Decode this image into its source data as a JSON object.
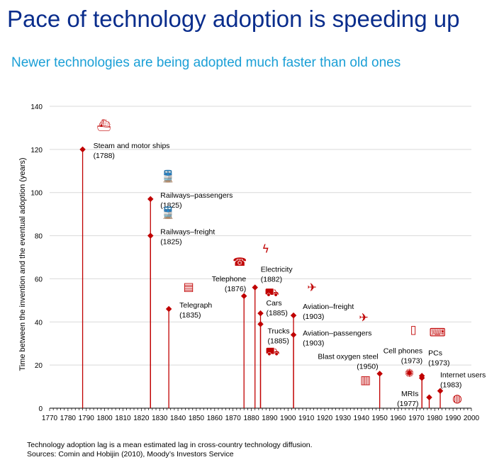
{
  "title": "Pace of technology adoption is speeding up",
  "subtitle": "Newer technologies are being adopted much faster than old ones",
  "footnote": "Technology adoption lag is a mean estimated lag in cross-country technology diffusion.",
  "sources": "Sources: Comin and Hobijin (2010), Moody’s Investors Service",
  "colors": {
    "accent": "#c00000",
    "grid": "#d9d9d9"
  },
  "chart_data": {
    "type": "scatter",
    "style": "lollipop",
    "ylabel": "Time between the invention and the eventual adoption (years)",
    "xlabel": "",
    "xlim": [
      1770,
      2000
    ],
    "ylim": [
      0,
      140
    ],
    "xticks": [
      1770,
      1780,
      1790,
      1800,
      1810,
      1820,
      1830,
      1840,
      1850,
      1860,
      1870,
      1880,
      1890,
      1900,
      1910,
      1920,
      1930,
      1940,
      1950,
      1960,
      1970,
      1980,
      1990,
      2000
    ],
    "yticks": [
      0,
      20,
      40,
      60,
      80,
      100,
      120,
      140
    ],
    "grid": "horizontal",
    "points": [
      {
        "name": "Steam and motor ships",
        "year_label": "(1788)",
        "x": 1788,
        "y": 120,
        "icon": "ship-icon"
      },
      {
        "name": "Railways–passengers",
        "year_label": "(1825)",
        "x": 1825,
        "y": 97,
        "icon": "train-icon"
      },
      {
        "name": "Railways–freight",
        "year_label": "(1825)",
        "x": 1825,
        "y": 80,
        "icon": "train-icon"
      },
      {
        "name": "Telegraph",
        "year_label": "(1835)",
        "x": 1835,
        "y": 46,
        "icon": "telegraph-icon"
      },
      {
        "name": "Telephone",
        "year_label": "(1876)",
        "x": 1876,
        "y": 52,
        "icon": "telephone-icon"
      },
      {
        "name": "Electricity",
        "year_label": "(1882)",
        "x": 1882,
        "y": 56,
        "icon": "lightning-icon"
      },
      {
        "name": "Cars",
        "year_label": "(1885)",
        "x": 1885,
        "y": 44,
        "icon": "car-icon"
      },
      {
        "name": "Trucks",
        "year_label": "(1885)",
        "x": 1885,
        "y": 39,
        "icon": "truck-icon"
      },
      {
        "name": "Aviation–freight",
        "year_label": "(1903)",
        "x": 1903,
        "y": 43,
        "icon": "plane-icon"
      },
      {
        "name": "Aviation–passengers",
        "year_label": "(1903)",
        "x": 1903,
        "y": 34,
        "icon": "plane-icon"
      },
      {
        "name": "Blast oxygen steel",
        "year_label": "(1950)",
        "x": 1950,
        "y": 16,
        "icon": "factory-icon"
      },
      {
        "name": "Cell phones",
        "year_label": "(1973)",
        "x": 1973,
        "y": 15,
        "icon": "cellphone-icon"
      },
      {
        "name": "PCs",
        "year_label": "(1973)",
        "x": 1973,
        "y": 14,
        "icon": "laptop-icon"
      },
      {
        "name": "MRIs",
        "year_label": "(1977)",
        "x": 1977,
        "y": 5,
        "icon": "mri-icon"
      },
      {
        "name": "Internet users",
        "year_label": "(1983)",
        "x": 1983,
        "y": 8,
        "icon": "globe-icon"
      }
    ]
  }
}
